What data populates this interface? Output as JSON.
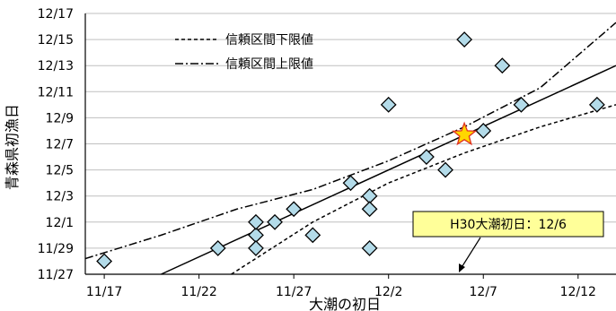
{
  "chart_data": {
    "type": "scatter",
    "title": "",
    "xlabel": "大潮の初日",
    "ylabel": "青森県初漁日",
    "x_range": [
      "11/16",
      "12/14"
    ],
    "y_range": [
      "11/27",
      "12/17"
    ],
    "x_ticks": [
      "11/17",
      "11/22",
      "11/27",
      "12/2",
      "12/7",
      "12/12"
    ],
    "y_ticks": [
      "11/27",
      "11/29",
      "12/1",
      "12/3",
      "12/5",
      "12/7",
      "12/9",
      "12/11",
      "12/13",
      "12/15",
      "12/17"
    ],
    "grid": {
      "horizontal": true,
      "vertical": false
    },
    "series": [
      {
        "type": "scatter",
        "marker": "diamond",
        "color": "#b3dbe9",
        "points": [
          {
            "x": "11/17",
            "y": "11/28"
          },
          {
            "x": "11/23",
            "y": "11/29"
          },
          {
            "x": "11/25",
            "y": "11/30"
          },
          {
            "x": "11/25",
            "y": "11/29"
          },
          {
            "x": "11/25",
            "y": "12/1"
          },
          {
            "x": "11/26",
            "y": "12/1"
          },
          {
            "x": "11/27",
            "y": "12/2"
          },
          {
            "x": "11/28",
            "y": "11/30"
          },
          {
            "x": "11/30",
            "y": "12/4"
          },
          {
            "x": "12/1",
            "y": "12/3"
          },
          {
            "x": "12/1",
            "y": "12/2"
          },
          {
            "x": "12/1",
            "y": "11/29"
          },
          {
            "x": "12/2",
            "y": "12/10"
          },
          {
            "x": "12/4",
            "y": "12/6"
          },
          {
            "x": "12/5",
            "y": "12/5"
          },
          {
            "x": "12/6",
            "y": "12/15"
          },
          {
            "x": "12/7",
            "y": "12/8"
          },
          {
            "x": "12/8",
            "y": "12/13"
          },
          {
            "x": "12/9",
            "y": "12/10"
          },
          {
            "x": "12/13",
            "y": "12/10"
          }
        ]
      },
      {
        "type": "line",
        "style": "solid",
        "points": [
          {
            "x": "11/20",
            "y": "11/27"
          },
          {
            "x": "12/14",
            "y": "12/13"
          }
        ]
      },
      {
        "name": "信頼区間下限値",
        "type": "line",
        "style": "dashed",
        "points": [
          {
            "x": "11/23.7",
            "y": "11/27"
          },
          {
            "x": "11/28",
            "y": "12/1"
          },
          {
            "x": "12/2",
            "y": "12/4"
          },
          {
            "x": "12/6",
            "y": "12/6.3"
          },
          {
            "x": "12/10",
            "y": "12/8.3"
          },
          {
            "x": "12/14",
            "y": "12/10"
          }
        ]
      },
      {
        "name": "信頼区間上限値",
        "type": "line",
        "style": "dash-dot",
        "points": [
          {
            "x": "11/16",
            "y": "11/28.2"
          },
          {
            "x": "11/20",
            "y": "11/30"
          },
          {
            "x": "11/24",
            "y": "12/2"
          },
          {
            "x": "11/28",
            "y": "12/3.5"
          },
          {
            "x": "12/2",
            "y": "12/5.7"
          },
          {
            "x": "12/6",
            "y": "12/8.3"
          },
          {
            "x": "12/10",
            "y": "12/11.3"
          },
          {
            "x": "12/14",
            "y": "12/16.3"
          }
        ]
      },
      {
        "type": "scatter",
        "marker": "star",
        "color": "#ffd700",
        "points": [
          {
            "x": "12/6",
            "y": "12/7.7"
          }
        ]
      }
    ],
    "legend": {
      "position": "top-left",
      "entries": [
        {
          "label": "信頼区間下限値",
          "style": "dashed"
        },
        {
          "label": "信頼区間上限値",
          "style": "dash-dot"
        }
      ]
    },
    "annotation": {
      "text": "H30大潮初日：12/6",
      "box_color": "#ffff99",
      "arrow_target": {
        "x": "12/5",
        "y": "11/27"
      }
    }
  }
}
